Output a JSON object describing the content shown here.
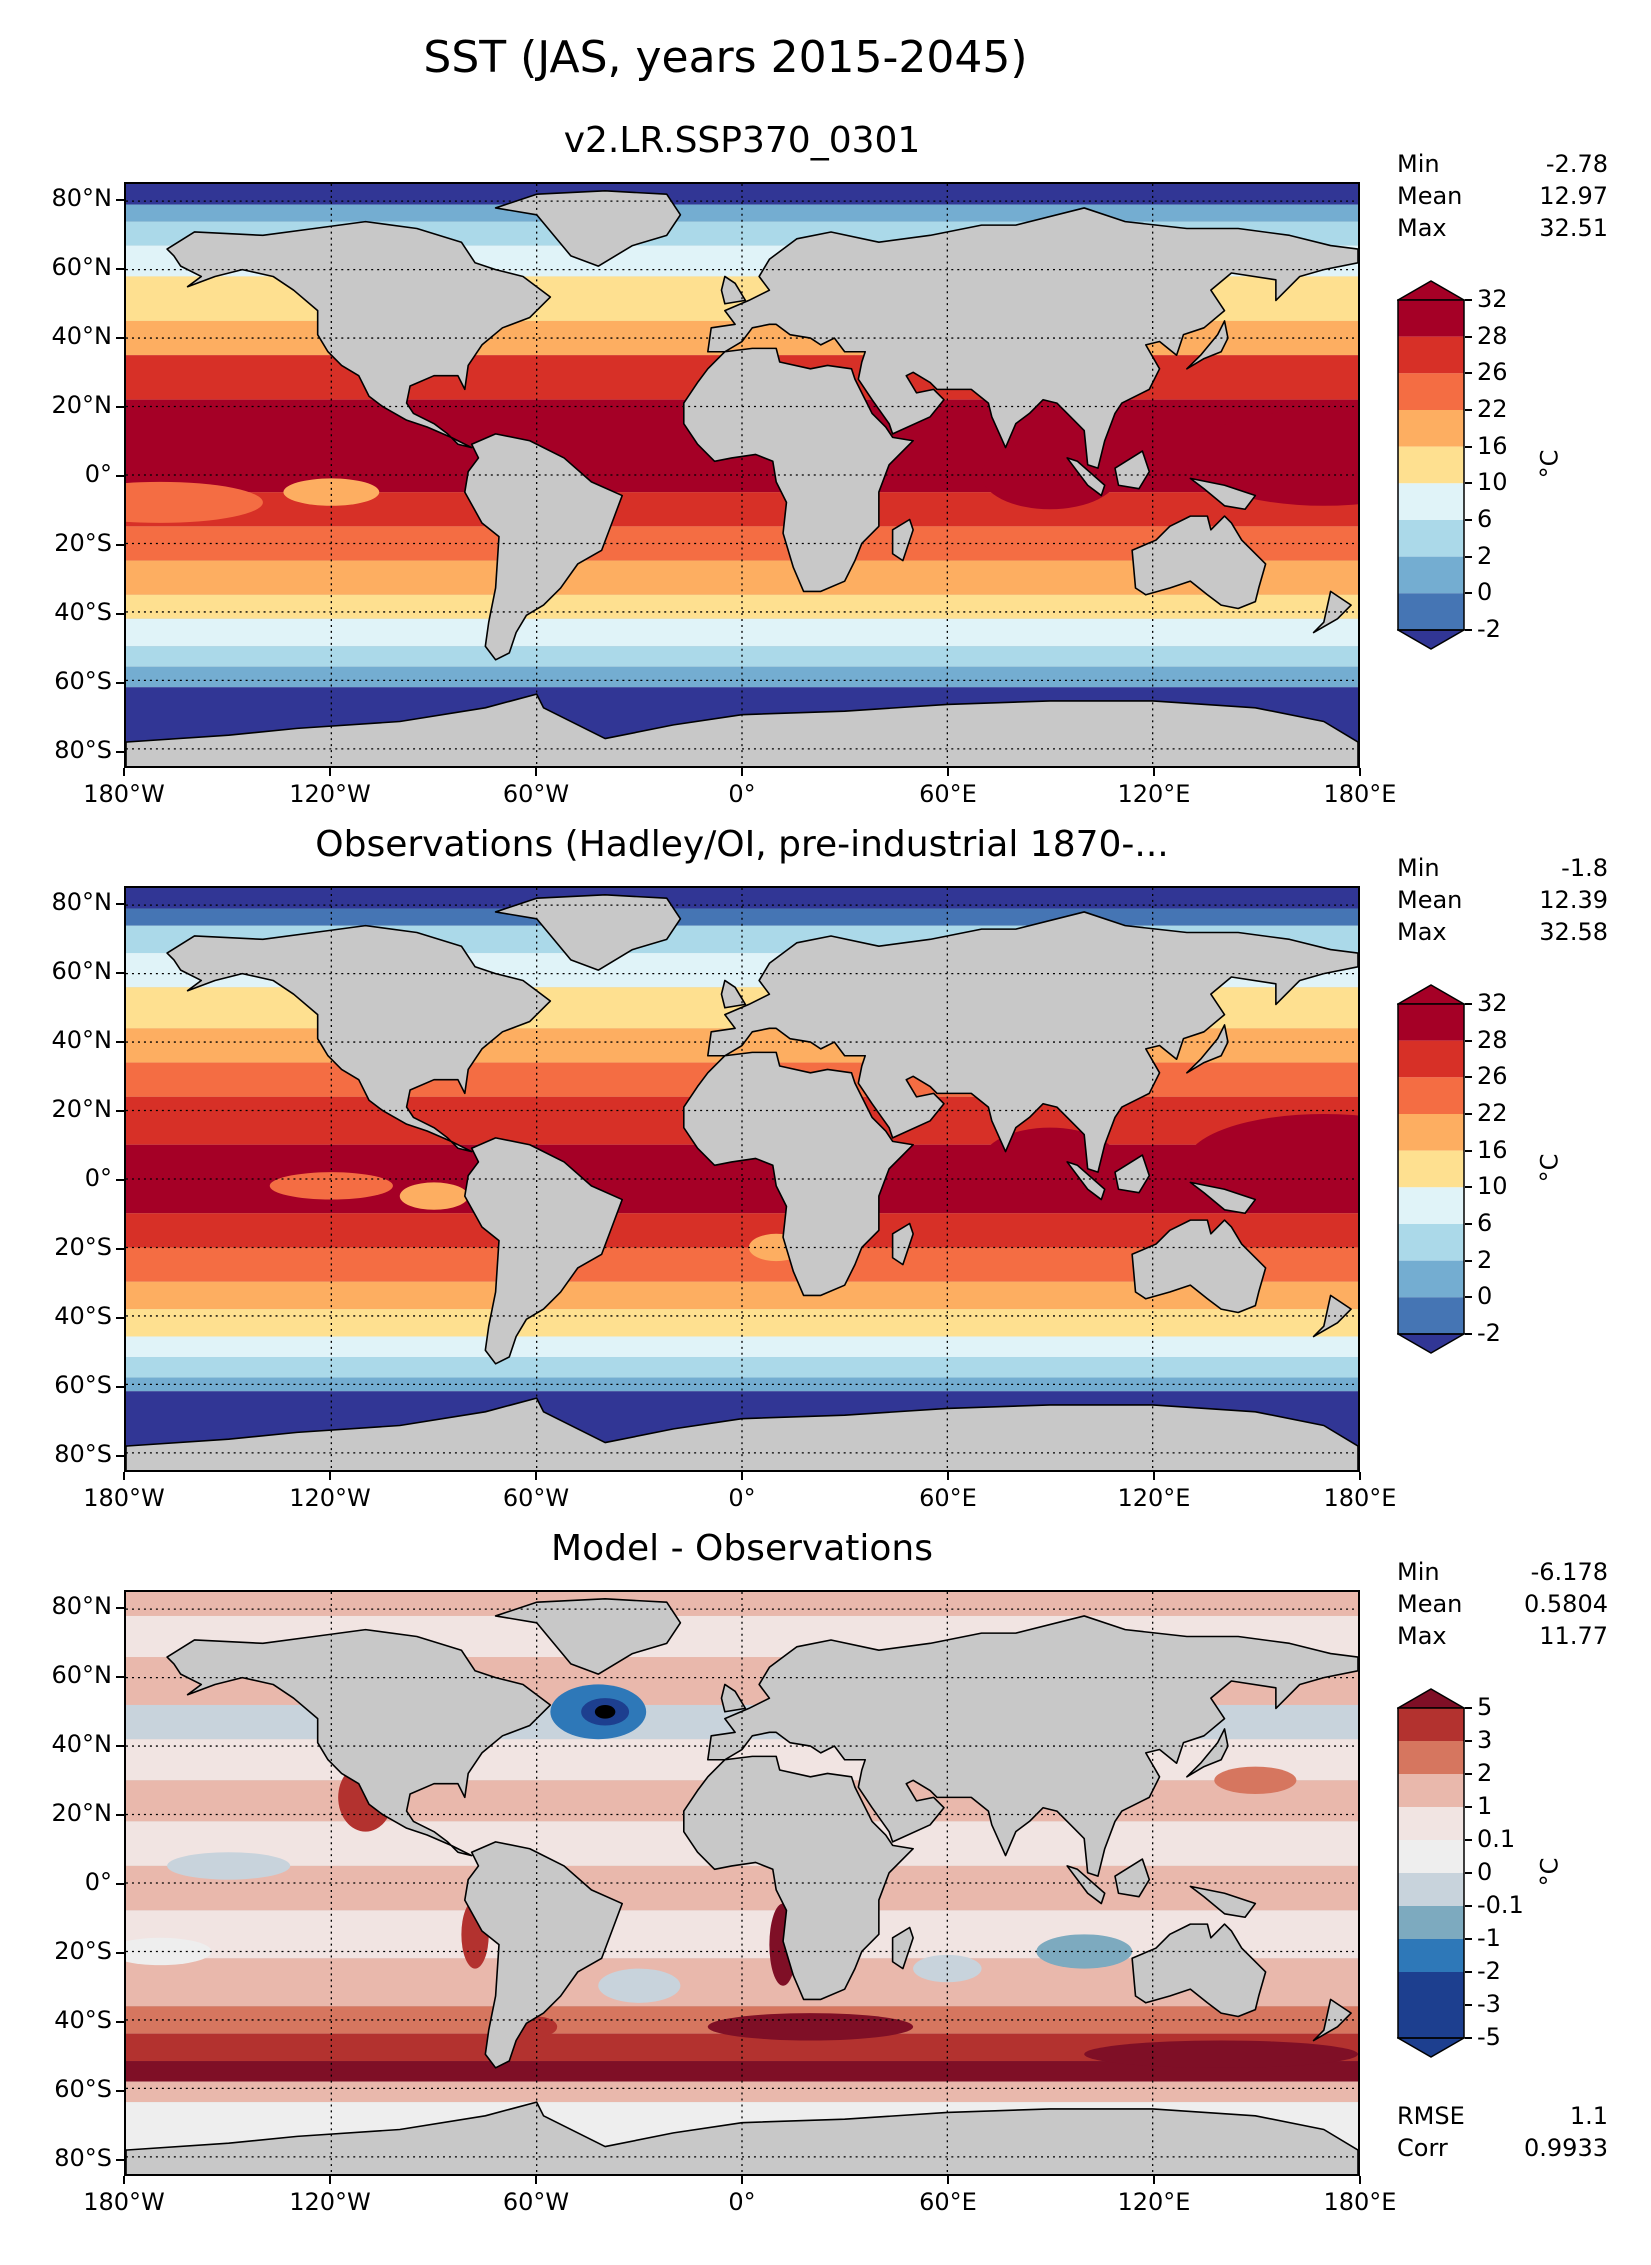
{
  "suptitle": "SST (JAS, years 2015-2045)",
  "lon_ticks": [
    "180°W",
    "120°W",
    "60°W",
    "0°",
    "60°E",
    "120°E",
    "180°E"
  ],
  "lat_ticks": [
    "80°N",
    "60°N",
    "40°N",
    "20°N",
    "0°",
    "20°S",
    "40°S",
    "60°S",
    "80°S"
  ],
  "panels": [
    {
      "title": "v2.LR.SSP370_0301",
      "stats": [
        {
          "label": "Min",
          "value": "-2.78"
        },
        {
          "label": "Mean",
          "value": "12.97"
        },
        {
          "label": "Max",
          "value": "32.51"
        }
      ],
      "colorbar": {
        "labels": [
          "32",
          "28",
          "26",
          "22",
          "16",
          "10",
          "6",
          "2",
          "0",
          "-2"
        ],
        "colors": [
          "#a50026",
          "#d73027",
          "#f46d43",
          "#fdae61",
          "#fee090",
          "#e0f3f8",
          "#abd9e9",
          "#74add1",
          "#4575b4",
          "#313695"
        ],
        "unit": "°C"
      }
    },
    {
      "title": "Observations (Hadley/OI, pre-industrial 1870-...",
      "stats": [
        {
          "label": "Min",
          "value": "-1.8"
        },
        {
          "label": "Mean",
          "value": "12.39"
        },
        {
          "label": "Max",
          "value": "32.58"
        }
      ],
      "colorbar": {
        "labels": [
          "32",
          "28",
          "26",
          "22",
          "16",
          "10",
          "6",
          "2",
          "0",
          "-2"
        ],
        "colors": [
          "#a50026",
          "#d73027",
          "#f46d43",
          "#fdae61",
          "#fee090",
          "#e0f3f8",
          "#abd9e9",
          "#74add1",
          "#4575b4",
          "#313695"
        ],
        "unit": "°C"
      }
    },
    {
      "title": "Model - Observations",
      "stats": [
        {
          "label": "Min",
          "value": "-6.178"
        },
        {
          "label": "Mean",
          "value": "0.5804"
        },
        {
          "label": "Max",
          "value": "11.77"
        }
      ],
      "extra_stats": [
        {
          "label": "RMSE",
          "value": "1.1"
        },
        {
          "label": "Corr",
          "value": "0.9933"
        }
      ],
      "colorbar": {
        "labels": [
          "5",
          "3",
          "2",
          "1",
          "0.1",
          "0",
          "-0.1",
          "-1",
          "-2",
          "-3",
          "-5"
        ],
        "colors": [
          "#7f0f26",
          "#b3322f",
          "#d6765f",
          "#e9b8ac",
          "#f1e4e2",
          "#eeeeee",
          "#c8d3dc",
          "#7daabf",
          "#2e78b8",
          "#1d3f8f"
        ],
        "unit": "°C"
      }
    }
  ]
}
